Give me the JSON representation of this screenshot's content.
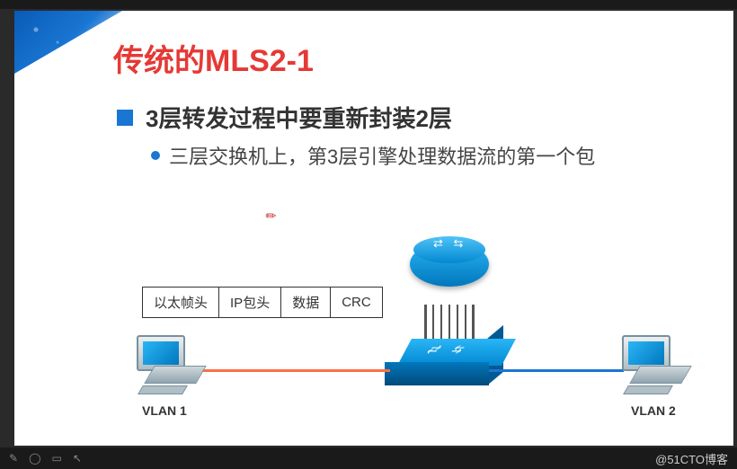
{
  "slide": {
    "title": "传统的MLS2-1",
    "title_color": "#e53935",
    "title_fontsize": 34,
    "heading": "3层转发过程中要重新封装2层",
    "heading_fontsize": 26,
    "heading_color": "#333333",
    "bullet_square_color": "#1976d2",
    "sub": "三层交换机上，第3层引擎处理数据流的第一个包",
    "sub_fontsize": 22,
    "sub_color": "#444444",
    "bullet_circle_color": "#1976d2",
    "background_color": "#ffffff",
    "corner_gradient": [
      "#0a5bb8",
      "#1976d2"
    ]
  },
  "packet": {
    "cells": [
      "以太帧头",
      "IP包头",
      "数据",
      "CRC"
    ],
    "border_color": "#333333",
    "fontsize": 15
  },
  "diagram": {
    "router": {
      "gradient": [
        "#29b6f6",
        "#0277bd"
      ],
      "arrow_color": "#ffffff"
    },
    "switch": {
      "top_gradient": [
        "#29b6f6",
        "#0288d1"
      ],
      "front_gradient": [
        "#0277bd",
        "#014a7a"
      ],
      "side_color": "#025a94",
      "arrow_color": "#ffffff"
    },
    "trunk": {
      "line_count": 7,
      "line_color": "#555555"
    },
    "pc": {
      "monitor_gradient": [
        "#eceff1",
        "#b0bec5"
      ],
      "screen_gradient": [
        "#29b6f6",
        "#0277bd"
      ],
      "border_color": "#78909c"
    },
    "links": {
      "left_color": "#ff7043",
      "right_color": "#1976d2",
      "thickness": 3
    },
    "labels": {
      "vlan1": "VLAN 1",
      "vlan2": "VLAN 2",
      "fontsize": 14,
      "color": "#333333"
    }
  },
  "watermark": "@51CTO博客",
  "pointer_glyph": "✎",
  "toolbar": {
    "icons": [
      "✎",
      "◯",
      "▭",
      "↖"
    ],
    "color": "#888888"
  },
  "frame": {
    "outer_bg": "#2a2a2a",
    "bar_bg": "#1a1a1a"
  }
}
